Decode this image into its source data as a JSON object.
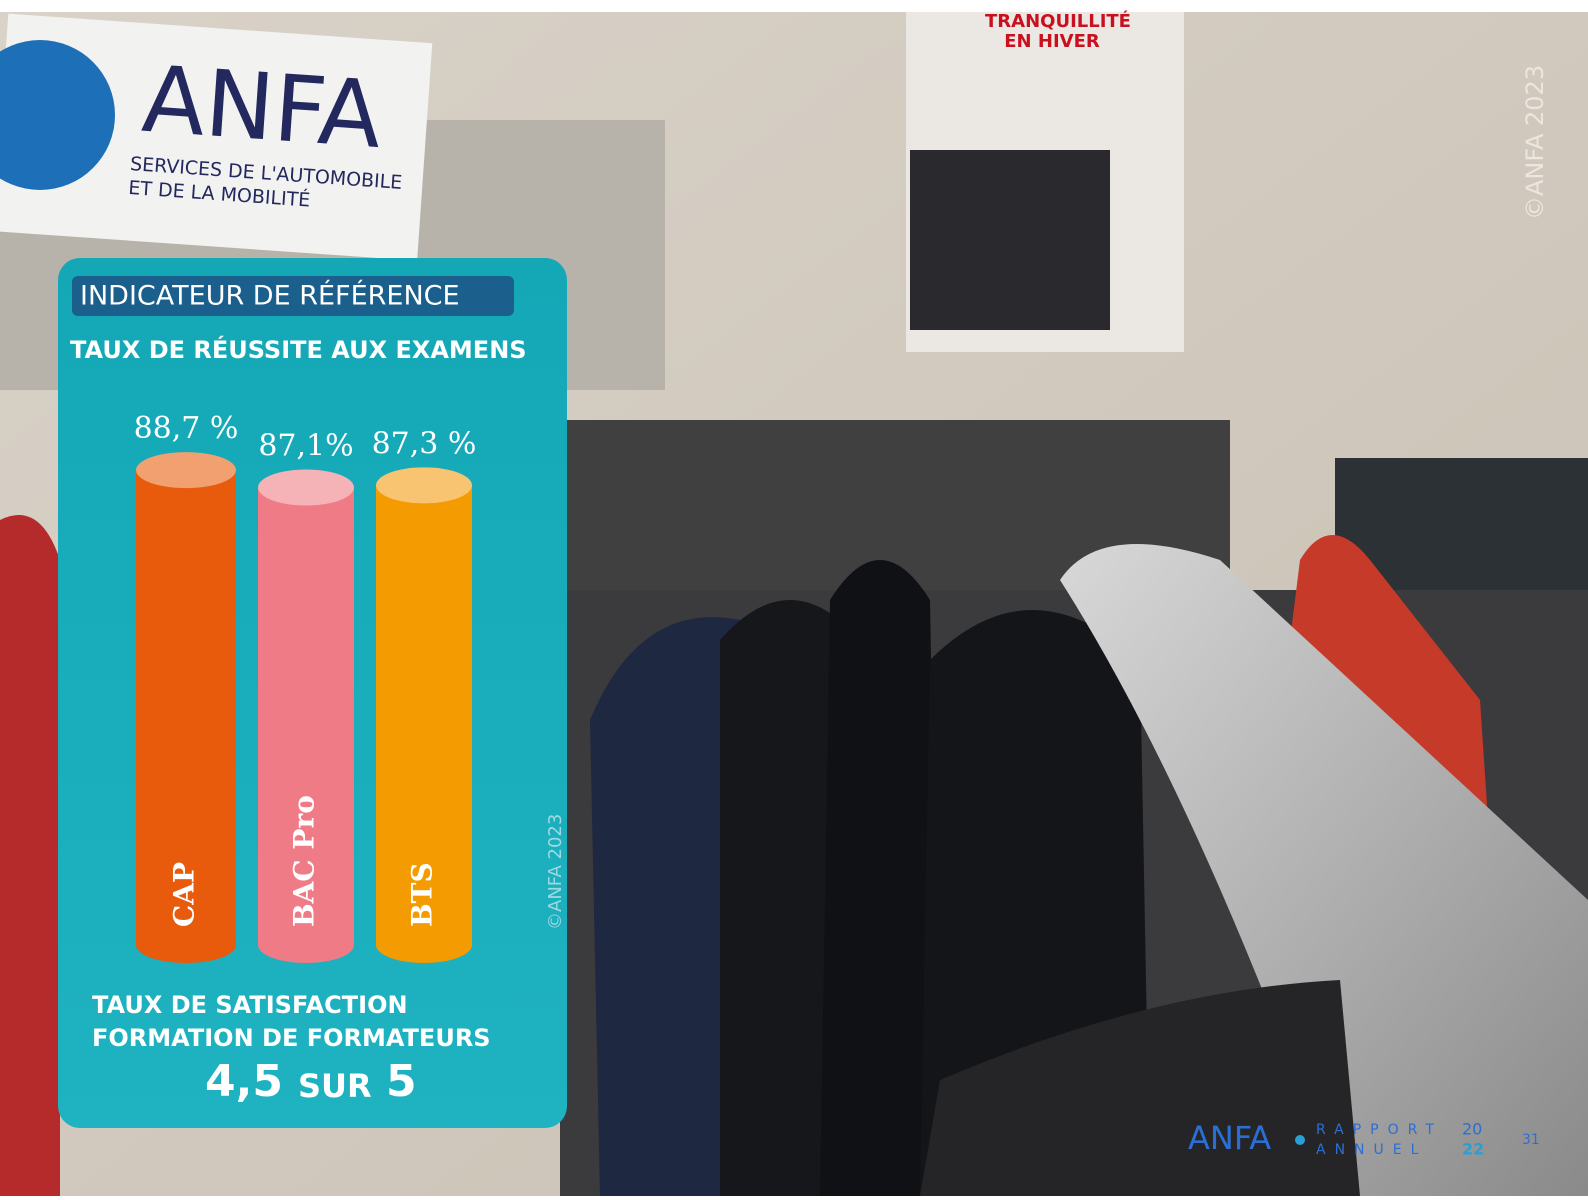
{
  "sign": {
    "brand": "ANFA",
    "line1": "SERVICES DE L'AUTOMOBILE",
    "line2": "ET DE LA MOBILITÉ"
  },
  "poster": {
    "line1": "TRANQUILLITÉ",
    "line2": "EN HIVER"
  },
  "badge": "INDICATEUR DE RÉFÉRENCE",
  "chart_data": {
    "type": "bar",
    "title": "TAUX DE RÉUSSITE AUX EXAMENS",
    "categories": [
      "CAP",
      "BAC Pro",
      "BTS"
    ],
    "values": [
      88.7,
      87.1,
      87.3
    ],
    "value_labels": [
      "88,7 %",
      "87,1%",
      "87,3 %"
    ],
    "colors": [
      "#e85a0c",
      "#ef7b86",
      "#f39b00"
    ],
    "top_colors": [
      "#f2a070",
      "#f5b3b8",
      "#f8c472"
    ],
    "ylim": [
      45,
      90
    ]
  },
  "satisfaction": {
    "line1": "TAUX DE SATISFACTION",
    "line2": "FORMATION DE FORMATEURS",
    "score": "4,5",
    "word": "SUR",
    "max": "5"
  },
  "watermarks": [
    "©ANFA 2023",
    "©ANFA 2023"
  ],
  "footer": {
    "brand": "ANFA",
    "word1": "RAPPORT",
    "word2": "ANNUEL",
    "year1": "20",
    "year2": "22",
    "page": "31"
  }
}
